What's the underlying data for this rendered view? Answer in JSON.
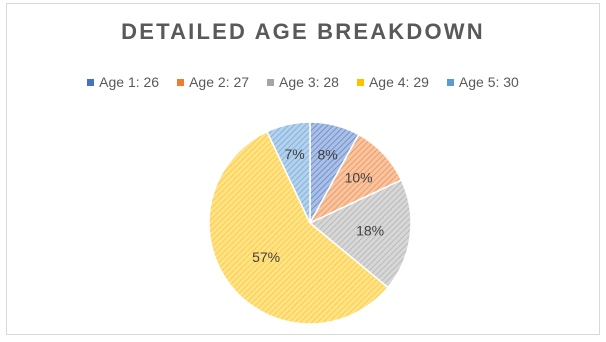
{
  "chart_data": {
    "type": "pie",
    "title": "DETAILED AGE BREAKDOWN",
    "legend_position": "top",
    "slices": [
      {
        "label": "Age 1: 26",
        "value": 8,
        "display": "8%",
        "color": "#4472c4"
      },
      {
        "label": "Age 2: 27",
        "value": 10,
        "display": "10%",
        "color": "#ed7d31"
      },
      {
        "label": "Age 3: 28",
        "value": 18,
        "display": "18%",
        "color": "#a5a5a5"
      },
      {
        "label": "Age 4: 29",
        "value": 57,
        "display": "57%",
        "color": "#ffc000"
      },
      {
        "label": "Age 5: 30",
        "value": 7,
        "display": "7%",
        "color": "#5b9bd5"
      }
    ]
  }
}
